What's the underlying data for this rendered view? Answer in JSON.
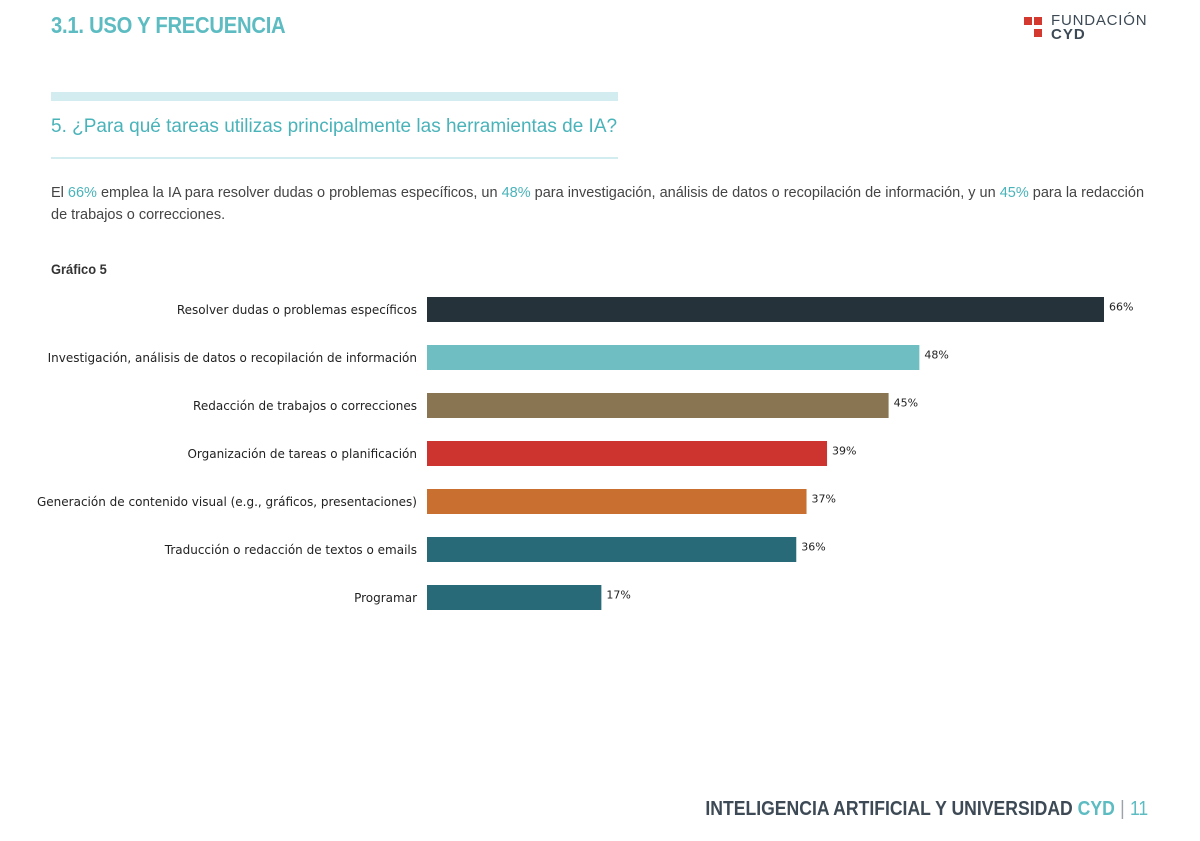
{
  "header": {
    "section_title": "3.1. USO Y FRECUENCIA",
    "logo_line1": "FUNDACIÓN",
    "logo_line2": "CYD",
    "logo_color": "#d4392f"
  },
  "question": "5. ¿Para qué tareas utilizas principalmente las herramientas de IA?",
  "intro": {
    "p1": "El ",
    "h1": "66%",
    "p2": " emplea la IA para resolver dudas o problemas específicos, un ",
    "h2": "48%",
    "p3": " para investigación, análisis de datos o recopilación de información, y un ",
    "h3": "45%",
    "p4": " para la redacción de trabajos o correcciones."
  },
  "chart_label": "Gráfico 5",
  "chart_data": {
    "type": "bar",
    "orientation": "horizontal",
    "title": "",
    "xlabel": "",
    "ylabel": "",
    "xlim": [
      0,
      66
    ],
    "categories": [
      "Resolver dudas o problemas específicos",
      "Investigación, análisis de datos o recopilación de información",
      "Redacción de trabajos o correcciones",
      "Organización de tareas o planificación",
      "Generación de contenido visual (e.g., gráficos, presentaciones)",
      "Traducción o redacción de textos o emails",
      "Programar"
    ],
    "values": [
      66,
      48,
      45,
      39,
      37,
      36,
      17
    ],
    "value_labels": [
      "66%",
      "48%",
      "45%",
      "39%",
      "37%",
      "36%",
      "17%"
    ],
    "colors": [
      "#26323a",
      "#6fbec1",
      "#8a7552",
      "#cd342f",
      "#c97030",
      "#296a78",
      "#296a78"
    ]
  },
  "footer": {
    "title": "INTELIGENCIA ARTIFICIAL Y UNIVERSIDAD",
    "brand": "CYD",
    "separator": "|",
    "page": "11"
  }
}
